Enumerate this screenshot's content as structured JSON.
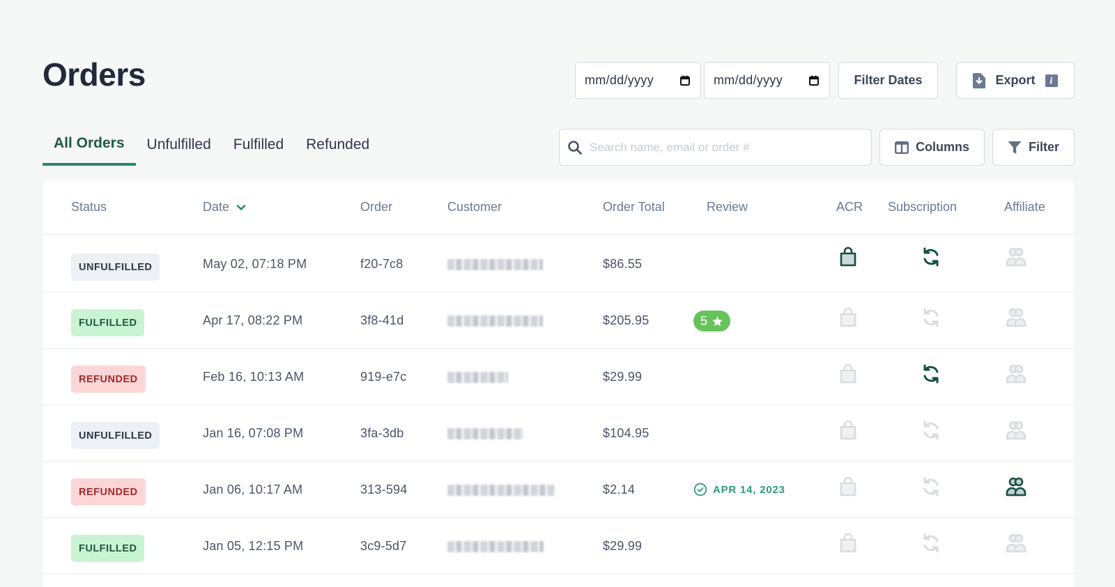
{
  "header": {
    "title": "Orders",
    "date_from": {
      "placeholder": "mm/dd/yyyy",
      "value": ""
    },
    "date_to": {
      "placeholder": "mm/dd/yyyy",
      "value": ""
    },
    "filter_dates_label": "Filter Dates",
    "export_label": "Export",
    "export_info_glyph": "i"
  },
  "tabs": [
    {
      "label": "All Orders",
      "active": true
    },
    {
      "label": "Unfulfilled",
      "active": false
    },
    {
      "label": "Fulfilled",
      "active": false
    },
    {
      "label": "Refunded",
      "active": false
    }
  ],
  "search": {
    "placeholder": "Search name, email or order #",
    "value": ""
  },
  "toolbar": {
    "columns_label": "Columns",
    "filter_label": "Filter"
  },
  "colors": {
    "accent": "#248a72",
    "icon_active": "#134e44",
    "icon_inactive": "#d9dce0",
    "review_green": "#66c35a"
  },
  "table": {
    "columns": [
      "Status",
      "Date",
      "Order",
      "Customer",
      "Order Total",
      "Review",
      "ACR",
      "Subscription",
      "Affiliate"
    ],
    "sort": {
      "column": "Date",
      "direction": "desc"
    },
    "rows": [
      {
        "status": "UNFULFILLED",
        "status_kind": "unfulfilled",
        "date": "May 02, 07:18 PM",
        "order": "f20-7c8",
        "customer": "[redacted]",
        "total": "$86.55",
        "review": "",
        "review_date": "",
        "acr": true,
        "subscription": true,
        "affiliate": false
      },
      {
        "status": "FULFILLED",
        "status_kind": "fulfilled",
        "date": "Apr 17, 08:22 PM",
        "order": "3f8-41d",
        "customer": "[redacted]",
        "total": "$205.95",
        "review": "5",
        "review_date": "",
        "acr": false,
        "subscription": false,
        "affiliate": false
      },
      {
        "status": "REFUNDED",
        "status_kind": "refunded",
        "date": "Feb 16, 10:13 AM",
        "order": "919-e7c",
        "customer": "[redacted]",
        "total": "$29.99",
        "review": "",
        "review_date": "",
        "acr": false,
        "subscription": true,
        "affiliate": false
      },
      {
        "status": "UNFULFILLED",
        "status_kind": "unfulfilled",
        "date": "Jan 16, 07:08 PM",
        "order": "3fa-3db",
        "customer": "[redacted]",
        "total": "$104.95",
        "review": "",
        "review_date": "",
        "acr": false,
        "subscription": false,
        "affiliate": false
      },
      {
        "status": "REFUNDED",
        "status_kind": "refunded",
        "date": "Jan 06, 10:17 AM",
        "order": "313-594",
        "customer": "[redacted]",
        "total": "$2.14",
        "review": "",
        "review_date": "APR 14, 2023",
        "acr": false,
        "subscription": false,
        "affiliate": true
      },
      {
        "status": "FULFILLED",
        "status_kind": "fulfilled",
        "date": "Jan 05, 12:15 PM",
        "order": "3c9-5d7",
        "customer": "[redacted]",
        "total": "$29.99",
        "review": "",
        "review_date": "",
        "acr": false,
        "subscription": false,
        "affiliate": false
      }
    ]
  }
}
